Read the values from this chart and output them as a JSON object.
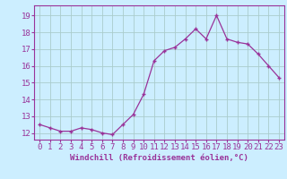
{
  "x": [
    0,
    1,
    2,
    3,
    4,
    5,
    6,
    7,
    8,
    9,
    10,
    11,
    12,
    13,
    14,
    15,
    16,
    17,
    18,
    19,
    20,
    21,
    22,
    23
  ],
  "y": [
    12.5,
    12.3,
    12.1,
    12.1,
    12.3,
    12.2,
    12.0,
    11.9,
    12.5,
    13.1,
    14.3,
    16.3,
    16.9,
    17.1,
    17.6,
    18.2,
    17.6,
    19.0,
    17.6,
    17.4,
    17.3,
    16.7,
    16.0,
    15.3
  ],
  "line_color": "#993399",
  "marker": "+",
  "bg_color": "#cceeff",
  "grid_color": "#aacccc",
  "border_color": "#993399",
  "tick_label_color": "#993399",
  "xlabel": "Windchill (Refroidissement éolien,°C)",
  "xlabel_color": "#993399",
  "yticks": [
    12,
    13,
    14,
    15,
    16,
    17,
    18,
    19
  ],
  "ylim": [
    11.6,
    19.6
  ],
  "xlim": [
    -0.5,
    23.5
  ],
  "tick_fontsize": 6.5,
  "xlabel_fontsize": 6.5
}
